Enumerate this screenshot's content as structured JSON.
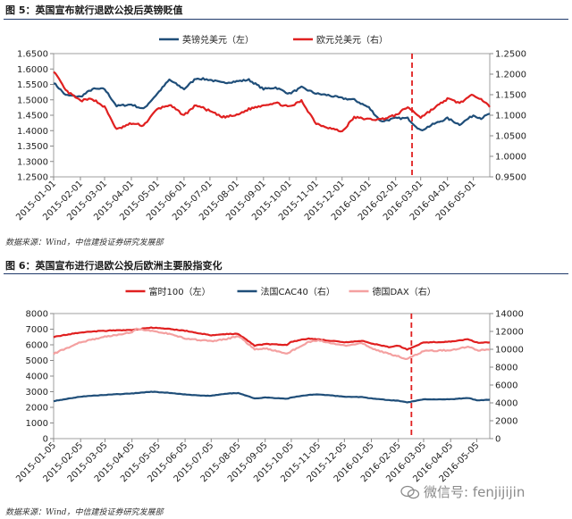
{
  "figures": [
    {
      "title": "图 5：英国宣布就行退欧公投后英镑贬值",
      "source": "数据来源：Wind，中信建投证券研究发展部"
    },
    {
      "title": "图 6：英国宣布进行退欧公投后欧洲主要股指变化",
      "source": "数据来源：Wind，中信建投证券研究发展部"
    }
  ],
  "watermark": {
    "text": "微信号: fenjijijin",
    "icon": "wechat-icon"
  },
  "colors": {
    "navy": "#1f4e79",
    "red": "#e02020",
    "pink": "#f4a0a0",
    "marker": "#e02020",
    "title_rule": "#1f3a6b"
  },
  "chart_data": [
    {
      "type": "line",
      "title": "",
      "x_ticks": [
        "2015-01-01",
        "2015-02-01",
        "2015-03-01",
        "2015-04-01",
        "2015-05-01",
        "2015-06-01",
        "2015-07-01",
        "2015-08-01",
        "2015-09-01",
        "2015-10-01",
        "2015-11-01",
        "2015-12-01",
        "2016-01-01",
        "2016-02-01",
        "2016-03-01",
        "2016-04-01",
        "2016-05-01"
      ],
      "x_range": [
        "2015-01-01",
        "2016-05-20"
      ],
      "y_left": {
        "min": 1.25,
        "max": 1.65,
        "ticks": [
          "1.2500",
          "1.3000",
          "1.3500",
          "1.4000",
          "1.4500",
          "1.5000",
          "1.5500",
          "1.6000",
          "1.6500"
        ]
      },
      "y_right": {
        "min": 0.95,
        "max": 1.25,
        "ticks": [
          "0.9500",
          "1.0000",
          "1.0500",
          "1.1000",
          "1.1500",
          "1.2000",
          "1.2500"
        ]
      },
      "legend_position": "top",
      "marker_line_date": "2016-02-20",
      "series": [
        {
          "name": "英镑兑美元（左）",
          "axis": "left",
          "color": "#1f4e79",
          "points": [
            [
              "2015-01-01",
              1.556
            ],
            [
              "2015-01-15",
              1.515
            ],
            [
              "2015-02-01",
              1.51
            ],
            [
              "2015-02-15",
              1.535
            ],
            [
              "2015-03-01",
              1.535
            ],
            [
              "2015-03-15",
              1.48
            ],
            [
              "2015-04-01",
              1.485
            ],
            [
              "2015-04-15",
              1.47
            ],
            [
              "2015-05-01",
              1.52
            ],
            [
              "2015-05-15",
              1.565
            ],
            [
              "2015-06-01",
              1.535
            ],
            [
              "2015-06-15",
              1.57
            ],
            [
              "2015-07-01",
              1.565
            ],
            [
              "2015-07-15",
              1.555
            ],
            [
              "2015-08-01",
              1.56
            ],
            [
              "2015-08-15",
              1.565
            ],
            [
              "2015-09-01",
              1.535
            ],
            [
              "2015-09-15",
              1.54
            ],
            [
              "2015-10-01",
              1.52
            ],
            [
              "2015-10-15",
              1.54
            ],
            [
              "2015-11-01",
              1.52
            ],
            [
              "2015-11-15",
              1.515
            ],
            [
              "2015-12-01",
              1.505
            ],
            [
              "2015-12-15",
              1.5
            ],
            [
              "2016-01-01",
              1.475
            ],
            [
              "2016-01-15",
              1.43
            ],
            [
              "2016-02-01",
              1.44
            ],
            [
              "2016-02-15",
              1.44
            ],
            [
              "2016-03-01",
              1.4
            ],
            [
              "2016-03-15",
              1.42
            ],
            [
              "2016-04-01",
              1.44
            ],
            [
              "2016-04-15",
              1.42
            ],
            [
              "2016-05-01",
              1.45
            ],
            [
              "2016-05-10",
              1.44
            ],
            [
              "2016-05-20",
              1.455
            ]
          ]
        },
        {
          "name": "欧元兑美元（右）",
          "axis": "right",
          "color": "#e02020",
          "points": [
            [
              "2015-01-01",
              1.208
            ],
            [
              "2015-01-15",
              1.16
            ],
            [
              "2015-02-01",
              1.135
            ],
            [
              "2015-02-15",
              1.14
            ],
            [
              "2015-03-01",
              1.12
            ],
            [
              "2015-03-15",
              1.065
            ],
            [
              "2015-04-01",
              1.08
            ],
            [
              "2015-04-15",
              1.075
            ],
            [
              "2015-05-01",
              1.115
            ],
            [
              "2015-05-15",
              1.125
            ],
            [
              "2015-06-01",
              1.1
            ],
            [
              "2015-06-15",
              1.125
            ],
            [
              "2015-07-01",
              1.11
            ],
            [
              "2015-07-15",
              1.095
            ],
            [
              "2015-08-01",
              1.1
            ],
            [
              "2015-08-15",
              1.115
            ],
            [
              "2015-09-01",
              1.125
            ],
            [
              "2015-09-15",
              1.13
            ],
            [
              "2015-10-01",
              1.12
            ],
            [
              "2015-10-15",
              1.135
            ],
            [
              "2015-11-01",
              1.08
            ],
            [
              "2015-11-15",
              1.07
            ],
            [
              "2015-12-01",
              1.06
            ],
            [
              "2015-12-15",
              1.095
            ],
            [
              "2016-01-01",
              1.09
            ],
            [
              "2016-01-15",
              1.09
            ],
            [
              "2016-02-01",
              1.1
            ],
            [
              "2016-02-15",
              1.12
            ],
            [
              "2016-03-01",
              1.095
            ],
            [
              "2016-03-15",
              1.115
            ],
            [
              "2016-04-01",
              1.14
            ],
            [
              "2016-04-15",
              1.13
            ],
            [
              "2016-05-01",
              1.15
            ],
            [
              "2016-05-10",
              1.14
            ],
            [
              "2016-05-20",
              1.12
            ]
          ]
        }
      ]
    },
    {
      "type": "line",
      "title": "",
      "x_ticks": [
        "2015-01-05",
        "2015-02-05",
        "2015-03-05",
        "2015-04-05",
        "2015-05-05",
        "2015-06-05",
        "2015-07-05",
        "2015-08-05",
        "2015-09-05",
        "2015-10-05",
        "2015-11-05",
        "2015-12-05",
        "2016-01-05",
        "2016-02-05",
        "2016-03-05",
        "2016-04-05",
        "2016-05-05"
      ],
      "x_range": [
        "2015-01-05",
        "2016-05-20"
      ],
      "y_left": {
        "min": 0,
        "max": 8000,
        "ticks": [
          "0",
          "1000",
          "2000",
          "3000",
          "4000",
          "5000",
          "6000",
          "7000",
          "8000"
        ]
      },
      "y_right": {
        "min": 0,
        "max": 14000,
        "ticks": [
          "0",
          "2000",
          "4000",
          "6000",
          "8000",
          "10000",
          "12000",
          "14000"
        ]
      },
      "legend_position": "top",
      "marker_line_date": "2016-02-20",
      "series": [
        {
          "name": "富时100（左）",
          "axis": "left",
          "color": "#e02020",
          "points": [
            [
              "2015-01-05",
              6500
            ],
            [
              "2015-02-05",
              6800
            ],
            [
              "2015-03-05",
              6900
            ],
            [
              "2015-04-05",
              6950
            ],
            [
              "2015-04-27",
              7100
            ],
            [
              "2015-05-20",
              7000
            ],
            [
              "2015-06-05",
              6900
            ],
            [
              "2015-06-25",
              6700
            ],
            [
              "2015-07-05",
              6600
            ],
            [
              "2015-07-25",
              6700
            ],
            [
              "2015-08-05",
              6700
            ],
            [
              "2015-08-24",
              5950
            ],
            [
              "2015-09-05",
              6050
            ],
            [
              "2015-09-30",
              6000
            ],
            [
              "2015-10-05",
              6200
            ],
            [
              "2015-10-25",
              6400
            ],
            [
              "2015-11-05",
              6350
            ],
            [
              "2015-12-05",
              6150
            ],
            [
              "2015-12-25",
              6250
            ],
            [
              "2016-01-05",
              6100
            ],
            [
              "2016-01-25",
              5850
            ],
            [
              "2016-02-05",
              5950
            ],
            [
              "2016-02-15",
              5700
            ],
            [
              "2016-03-05",
              6150
            ],
            [
              "2016-04-05",
              6200
            ],
            [
              "2016-04-25",
              6350
            ],
            [
              "2016-05-05",
              6150
            ],
            [
              "2016-05-20",
              6150
            ]
          ]
        },
        {
          "name": "法国CAC40（右）",
          "axis": "right",
          "color": "#1f4e79",
          "points": [
            [
              "2015-01-05",
              4200
            ],
            [
              "2015-02-05",
              4700
            ],
            [
              "2015-03-05",
              4900
            ],
            [
              "2015-04-05",
              5050
            ],
            [
              "2015-04-27",
              5250
            ],
            [
              "2015-05-20",
              5100
            ],
            [
              "2015-06-05",
              4950
            ],
            [
              "2015-06-25",
              4800
            ],
            [
              "2015-07-05",
              4800
            ],
            [
              "2015-07-25",
              5050
            ],
            [
              "2015-08-05",
              5100
            ],
            [
              "2015-08-24",
              4500
            ],
            [
              "2015-09-05",
              4600
            ],
            [
              "2015-09-30",
              4450
            ],
            [
              "2015-10-05",
              4600
            ],
            [
              "2015-10-25",
              4900
            ],
            [
              "2015-11-05",
              4950
            ],
            [
              "2015-12-05",
              4700
            ],
            [
              "2015-12-25",
              4650
            ],
            [
              "2016-01-05",
              4500
            ],
            [
              "2016-01-25",
              4300
            ],
            [
              "2016-02-05",
              4250
            ],
            [
              "2016-02-15",
              4050
            ],
            [
              "2016-03-05",
              4400
            ],
            [
              "2016-04-05",
              4400
            ],
            [
              "2016-04-25",
              4550
            ],
            [
              "2016-05-05",
              4300
            ],
            [
              "2016-05-20",
              4350
            ]
          ]
        },
        {
          "name": "德国DAX（右）",
          "axis": "right",
          "color": "#f4a0a0",
          "points": [
            [
              "2015-01-05",
              9500
            ],
            [
              "2015-02-05",
              10800
            ],
            [
              "2015-03-05",
              11400
            ],
            [
              "2015-04-05",
              11900
            ],
            [
              "2015-04-10",
              12300
            ],
            [
              "2015-05-20",
              11700
            ],
            [
              "2015-06-05",
              11200
            ],
            [
              "2015-06-25",
              11000
            ],
            [
              "2015-07-05",
              10900
            ],
            [
              "2015-07-25",
              11200
            ],
            [
              "2015-08-05",
              11500
            ],
            [
              "2015-08-24",
              10000
            ],
            [
              "2015-09-05",
              10100
            ],
            [
              "2015-09-30",
              9500
            ],
            [
              "2015-10-05",
              9800
            ],
            [
              "2015-10-25",
              10800
            ],
            [
              "2015-11-05",
              11000
            ],
            [
              "2015-12-05",
              10400
            ],
            [
              "2015-12-25",
              10700
            ],
            [
              "2016-01-05",
              10100
            ],
            [
              "2016-01-25",
              9500
            ],
            [
              "2016-02-05",
              9200
            ],
            [
              "2016-02-15",
              8900
            ],
            [
              "2016-03-05",
              9800
            ],
            [
              "2016-04-05",
              9900
            ],
            [
              "2016-04-25",
              10300
            ],
            [
              "2016-05-05",
              9900
            ],
            [
              "2016-05-20",
              9950
            ]
          ]
        }
      ]
    }
  ]
}
